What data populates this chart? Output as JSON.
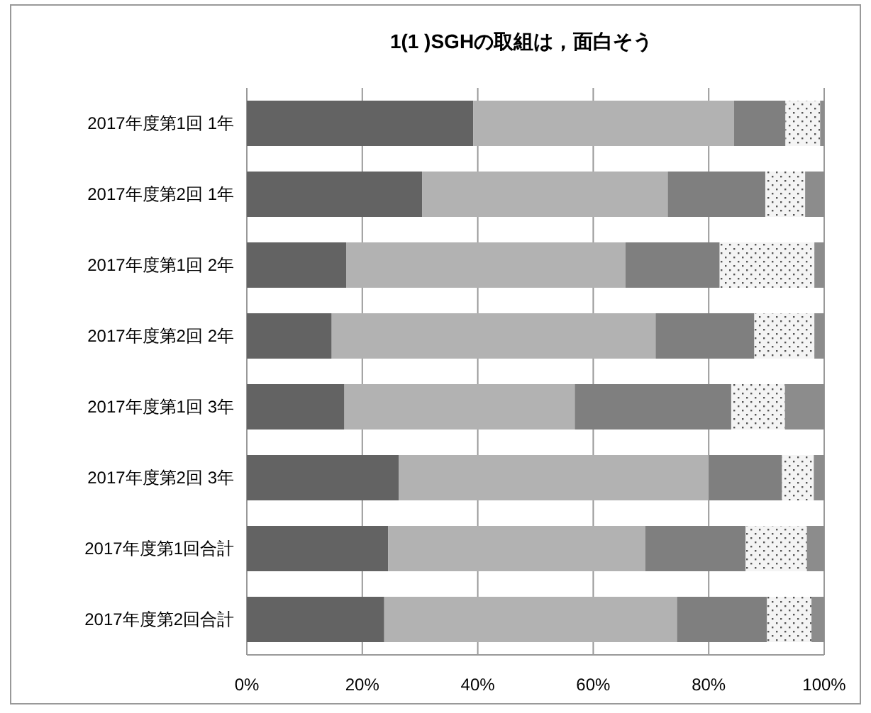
{
  "chart_data": {
    "type": "bar",
    "orientation": "horizontal",
    "stacked": true,
    "title": "1(1 )SGHの取組は，面白そう",
    "categories": [
      "2017年度第1回 1年",
      "2017年度第2回 1年",
      "2017年度第1回 2年",
      "2017年度第2回 2年",
      "2017年度第1回 3年",
      "2017年度第2回 3年",
      "2017年度第1回合計",
      "2017年度第2回合計"
    ],
    "series": [
      {
        "color": "#636363",
        "values": [
          39.2,
          30.4,
          17.2,
          14.7,
          16.9,
          26.3,
          24.5,
          23.8
        ]
      },
      {
        "color": "#b2b2b2",
        "values": [
          45.2,
          42.5,
          48.4,
          56.1,
          39.9,
          53.7,
          44.5,
          50.7
        ]
      },
      {
        "color": "#7f7f7f",
        "values": [
          8.9,
          16.9,
          16.3,
          17.1,
          27.1,
          12.7,
          17.4,
          15.6
        ]
      },
      {
        "color": "#f4f4f4",
        "values": [
          6.0,
          6.9,
          16.4,
          10.4,
          9.3,
          5.5,
          10.6,
          7.7
        ]
      },
      {
        "color": "#8c8c8c",
        "values": [
          0.7,
          3.3,
          1.7,
          1.7,
          6.8,
          1.8,
          3.0,
          2.2
        ]
      }
    ],
    "xlim": [
      0,
      100
    ],
    "xticks": [
      {
        "value": 0,
        "label": "0%"
      },
      {
        "value": 20,
        "label": "20%"
      },
      {
        "value": 40,
        "label": "40%"
      },
      {
        "value": 60,
        "label": "60%"
      },
      {
        "value": 80,
        "label": "80%"
      },
      {
        "value": 100,
        "label": "100%"
      }
    ],
    "grid": "x"
  }
}
